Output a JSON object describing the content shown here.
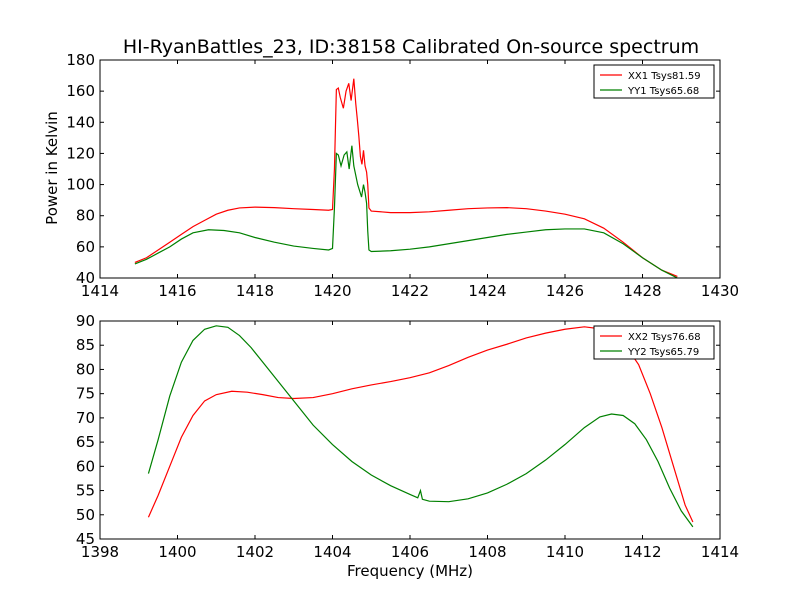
{
  "chart_data": [
    {
      "type": "line",
      "title": "HI-RyanBattles_23, ID:38158 Calibrated On-source spectrum",
      "xlabel": "",
      "ylabel": "Power in Kelvin",
      "xlim": [
        1414,
        1430
      ],
      "ylim": [
        40,
        180
      ],
      "xticks": [
        "1414",
        "1416",
        "1418",
        "1420",
        "1422",
        "1424",
        "1426",
        "1428",
        "1430"
      ],
      "yticks": [
        "40",
        "60",
        "80",
        "100",
        "120",
        "140",
        "160",
        "180"
      ],
      "legend_position": "top-right",
      "series": [
        {
          "name": "XX1 Tsys81.59",
          "color": "#ff0000",
          "points": [
            [
              1414.9,
              50
            ],
            [
              1415.2,
              53
            ],
            [
              1415.5,
              58
            ],
            [
              1415.8,
              63
            ],
            [
              1416.1,
              68
            ],
            [
              1416.4,
              73
            ],
            [
              1416.7,
              77
            ],
            [
              1417.0,
              81
            ],
            [
              1417.3,
              83.5
            ],
            [
              1417.6,
              85
            ],
            [
              1418.0,
              85.5
            ],
            [
              1418.5,
              85.2
            ],
            [
              1419.0,
              84.5
            ],
            [
              1419.5,
              84
            ],
            [
              1419.9,
              83.5
            ],
            [
              1420.0,
              84
            ],
            [
              1420.05,
              110
            ],
            [
              1420.1,
              161
            ],
            [
              1420.15,
              162
            ],
            [
              1420.2,
              156
            ],
            [
              1420.28,
              149
            ],
            [
              1420.35,
              160
            ],
            [
              1420.42,
              165
            ],
            [
              1420.48,
              154
            ],
            [
              1420.55,
              168
            ],
            [
              1420.6,
              152
            ],
            [
              1420.64,
              142
            ],
            [
              1420.68,
              131
            ],
            [
              1420.72,
              118
            ],
            [
              1420.76,
              113
            ],
            [
              1420.8,
              122
            ],
            [
              1420.84,
              112
            ],
            [
              1420.88,
              108
            ],
            [
              1420.91,
              100
            ],
            [
              1420.94,
              85
            ],
            [
              1421.0,
              83
            ],
            [
              1421.5,
              82
            ],
            [
              1422.0,
              82
            ],
            [
              1422.5,
              82.5
            ],
            [
              1423.0,
              83.5
            ],
            [
              1423.5,
              84.5
            ],
            [
              1424.0,
              85
            ],
            [
              1424.5,
              85.2
            ],
            [
              1425.0,
              84.5
            ],
            [
              1425.5,
              83
            ],
            [
              1426.0,
              81
            ],
            [
              1426.5,
              78
            ],
            [
              1427.0,
              72
            ],
            [
              1427.5,
              63
            ],
            [
              1428.0,
              53
            ],
            [
              1428.5,
              45
            ],
            [
              1428.9,
              41
            ]
          ]
        },
        {
          "name": "YY1 Tsys65.68",
          "color": "#008000",
          "points": [
            [
              1414.9,
              49
            ],
            [
              1415.2,
              52
            ],
            [
              1415.5,
              56
            ],
            [
              1415.8,
              60
            ],
            [
              1416.1,
              65
            ],
            [
              1416.4,
              69
            ],
            [
              1416.8,
              71
            ],
            [
              1417.2,
              70.5
            ],
            [
              1417.6,
              69
            ],
            [
              1418.0,
              66
            ],
            [
              1418.5,
              63
            ],
            [
              1419.0,
              60.5
            ],
            [
              1419.5,
              59
            ],
            [
              1419.9,
              58
            ],
            [
              1420.0,
              59
            ],
            [
              1420.05,
              85
            ],
            [
              1420.1,
              120
            ],
            [
              1420.15,
              119
            ],
            [
              1420.22,
              112
            ],
            [
              1420.3,
              119
            ],
            [
              1420.37,
              121
            ],
            [
              1420.43,
              110
            ],
            [
              1420.5,
              125
            ],
            [
              1420.55,
              112
            ],
            [
              1420.6,
              106
            ],
            [
              1420.65,
              100
            ],
            [
              1420.7,
              96
            ],
            [
              1420.75,
              92
            ],
            [
              1420.8,
              100
            ],
            [
              1420.84,
              95
            ],
            [
              1420.88,
              88
            ],
            [
              1420.91,
              70
            ],
            [
              1420.94,
              58
            ],
            [
              1421.0,
              57
            ],
            [
              1421.5,
              57.5
            ],
            [
              1422.0,
              58.5
            ],
            [
              1422.5,
              60
            ],
            [
              1423.0,
              62
            ],
            [
              1423.5,
              64
            ],
            [
              1424.0,
              66
            ],
            [
              1424.5,
              68
            ],
            [
              1425.0,
              69.5
            ],
            [
              1425.5,
              71
            ],
            [
              1426.0,
              71.5
            ],
            [
              1426.5,
              71.5
            ],
            [
              1427.0,
              69
            ],
            [
              1427.5,
              62
            ],
            [
              1428.0,
              53
            ],
            [
              1428.5,
              45
            ],
            [
              1428.9,
              40
            ]
          ]
        }
      ]
    },
    {
      "type": "line",
      "title": "",
      "xlabel": "Frequency (MHz)",
      "ylabel": "",
      "xlim": [
        1398,
        1414
      ],
      "ylim": [
        45,
        90
      ],
      "xticks": [
        "1398",
        "1400",
        "1402",
        "1404",
        "1406",
        "1408",
        "1410",
        "1412",
        "1414"
      ],
      "yticks": [
        "45",
        "50",
        "55",
        "60",
        "65",
        "70",
        "75",
        "80",
        "85",
        "90"
      ],
      "legend_position": "top-right",
      "series": [
        {
          "name": "XX2 Tsys76.68",
          "color": "#ff0000",
          "points": [
            [
              1399.25,
              49.5
            ],
            [
              1399.5,
              54
            ],
            [
              1399.8,
              60
            ],
            [
              1400.1,
              66
            ],
            [
              1400.4,
              70.5
            ],
            [
              1400.7,
              73.5
            ],
            [
              1401.0,
              74.8
            ],
            [
              1401.4,
              75.5
            ],
            [
              1401.8,
              75.3
            ],
            [
              1402.2,
              74.8
            ],
            [
              1402.6,
              74.2
            ],
            [
              1403.0,
              74
            ],
            [
              1403.5,
              74.2
            ],
            [
              1404.0,
              75
            ],
            [
              1404.5,
              76
            ],
            [
              1405.0,
              76.8
            ],
            [
              1405.5,
              77.5
            ],
            [
              1406.0,
              78.3
            ],
            [
              1406.5,
              79.3
            ],
            [
              1407.0,
              80.8
            ],
            [
              1407.5,
              82.5
            ],
            [
              1408.0,
              84
            ],
            [
              1408.5,
              85.2
            ],
            [
              1409.0,
              86.5
            ],
            [
              1409.5,
              87.5
            ],
            [
              1410.0,
              88.3
            ],
            [
              1410.5,
              88.8
            ],
            [
              1411.0,
              88.3
            ],
            [
              1411.3,
              87
            ],
            [
              1411.6,
              84.5
            ],
            [
              1411.9,
              81
            ],
            [
              1412.2,
              75
            ],
            [
              1412.5,
              68
            ],
            [
              1412.8,
              60
            ],
            [
              1413.1,
              52
            ],
            [
              1413.3,
              48.5
            ]
          ]
        },
        {
          "name": "YY2 Tsys65.79",
          "color": "#008000",
          "points": [
            [
              1399.25,
              58.5
            ],
            [
              1399.5,
              65.5
            ],
            [
              1399.8,
              74.5
            ],
            [
              1400.1,
              81.5
            ],
            [
              1400.4,
              86
            ],
            [
              1400.7,
              88.3
            ],
            [
              1401.0,
              89
            ],
            [
              1401.3,
              88.7
            ],
            [
              1401.6,
              87
            ],
            [
              1401.9,
              84.5
            ],
            [
              1402.2,
              81.5
            ],
            [
              1402.6,
              77.5
            ],
            [
              1403.0,
              73.5
            ],
            [
              1403.5,
              68.5
            ],
            [
              1404.0,
              64.5
            ],
            [
              1404.5,
              61
            ],
            [
              1405.0,
              58.2
            ],
            [
              1405.5,
              56
            ],
            [
              1406.0,
              54.2
            ],
            [
              1406.2,
              53.5
            ],
            [
              1406.27,
              55
            ],
            [
              1406.32,
              53.2
            ],
            [
              1406.5,
              52.8
            ],
            [
              1407.0,
              52.7
            ],
            [
              1407.5,
              53.3
            ],
            [
              1408.0,
              54.5
            ],
            [
              1408.5,
              56.3
            ],
            [
              1409.0,
              58.5
            ],
            [
              1409.5,
              61.3
            ],
            [
              1410.0,
              64.5
            ],
            [
              1410.5,
              68
            ],
            [
              1410.9,
              70.2
            ],
            [
              1411.2,
              70.8
            ],
            [
              1411.5,
              70.5
            ],
            [
              1411.8,
              68.8
            ],
            [
              1412.1,
              65.5
            ],
            [
              1412.4,
              61
            ],
            [
              1412.7,
              55.5
            ],
            [
              1413.0,
              50.8
            ],
            [
              1413.3,
              47.5
            ]
          ]
        }
      ]
    }
  ]
}
